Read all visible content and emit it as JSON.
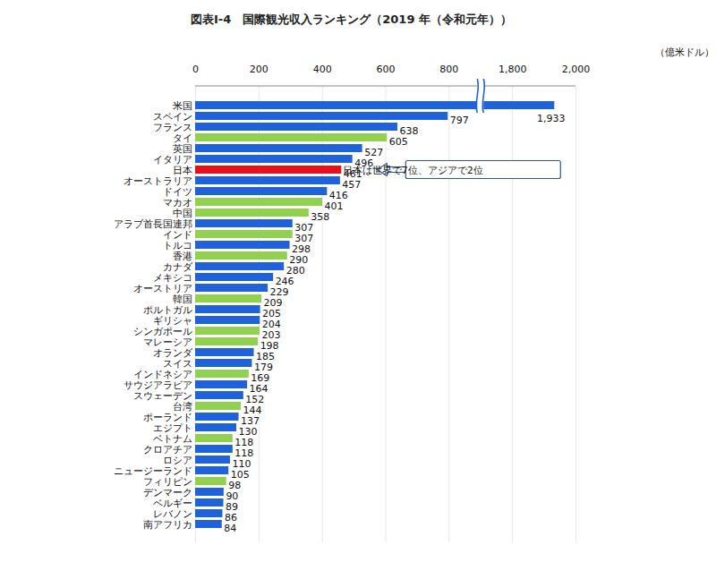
{
  "chart_data": {
    "type": "bar",
    "title": "図表Ⅰ-4　国際観光収入ランキング（2019 年（令和元年））",
    "x_label": "（億米ドル）",
    "orientation": "horizontal",
    "categories": [
      "米国",
      "スペイン",
      "フランス",
      "タイ",
      "英国",
      "イタリア",
      "日本",
      "オーストラリア",
      "ドイツ",
      "マカオ",
      "中国",
      "アラブ首長国連邦",
      "インド",
      "トルコ",
      "香港",
      "カナダ",
      "メキシコ",
      "オーストリア",
      "韓国",
      "ポルトガル",
      "ギリシャ",
      "シンガポール",
      "マレーシア",
      "オランダ",
      "スイス",
      "インドネシア",
      "サウジアラビア",
      "スウェーデン",
      "台湾",
      "ポーランド",
      "エジプト",
      "ベトナム",
      "クロアチア",
      "ロシア",
      "ニュージーランド",
      "フィリピン",
      "デンマーク",
      "ベルギー",
      "レバノン",
      "南アフリカ"
    ],
    "values": [
      1933,
      797,
      638,
      605,
      527,
      496,
      461,
      457,
      416,
      401,
      358,
      307,
      307,
      298,
      290,
      280,
      246,
      229,
      209,
      205,
      204,
      203,
      198,
      185,
      179,
      169,
      164,
      152,
      144,
      137,
      130,
      118,
      118,
      110,
      105,
      98,
      90,
      89,
      86,
      84
    ],
    "value_labels": [
      "1,933",
      "797",
      "638",
      "605",
      "527",
      "496",
      "461",
      "457",
      "416",
      "401",
      "358",
      "307",
      "307",
      "298",
      "290",
      "280",
      "246",
      "229",
      "209",
      "205",
      "204",
      "203",
      "198",
      "185",
      "179",
      "169",
      "164",
      "152",
      "144",
      "137",
      "130",
      "118",
      "118",
      "110",
      "105",
      "98",
      "90",
      "89",
      "86",
      "84"
    ],
    "colors": [
      "#1f62d9",
      "#1f62d9",
      "#1f62d9",
      "#92d050",
      "#1f62d9",
      "#1f62d9",
      "#e8101a",
      "#1f62d9",
      "#1f62d9",
      "#92d050",
      "#92d050",
      "#1f62d9",
      "#92d050",
      "#1f62d9",
      "#92d050",
      "#1f62d9",
      "#1f62d9",
      "#1f62d9",
      "#92d050",
      "#1f62d9",
      "#1f62d9",
      "#92d050",
      "#92d050",
      "#1f62d9",
      "#1f62d9",
      "#92d050",
      "#1f62d9",
      "#1f62d9",
      "#92d050",
      "#1f62d9",
      "#1f62d9",
      "#92d050",
      "#1f62d9",
      "#1f62d9",
      "#1f62d9",
      "#92d050",
      "#1f62d9",
      "#1f62d9",
      "#1f62d9",
      "#1f62d9"
    ],
    "xlim": [
      0,
      2000
    ],
    "xticks": [
      0,
      200,
      400,
      600,
      800,
      {
        "value": 1800,
        "label": "1,800"
      },
      {
        "value": 2000,
        "label": "2,000"
      }
    ],
    "grid": true,
    "data_labels": true,
    "annotations": [
      {
        "text": "日本は世界で7位、アジアで2位",
        "category": "日本"
      }
    ]
  }
}
